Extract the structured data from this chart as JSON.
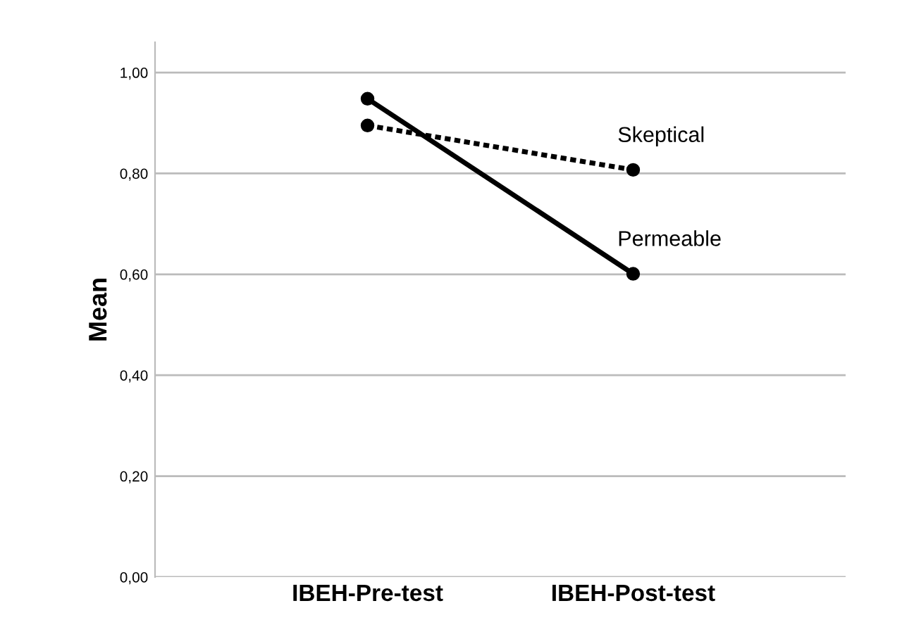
{
  "chart_data": {
    "type": "line",
    "ylabel": "Mean",
    "categories": [
      "IBEH-Pre-test",
      "IBEH-Post-test"
    ],
    "series": [
      {
        "name": "Skeptical",
        "color": "#000000",
        "line_style": "dotted",
        "values": [
          0.895,
          0.807
        ]
      },
      {
        "name": "Permeable",
        "color": "#000000",
        "line_style": "solid",
        "values": [
          0.948,
          0.601
        ]
      }
    ],
    "ylim": [
      0,
      1.06
    ],
    "yticks": [
      {
        "value": 0,
        "label": "0,00"
      },
      {
        "value": 0.2,
        "label": "0,20"
      },
      {
        "value": 0.4,
        "label": "0,40"
      },
      {
        "value": 0.6,
        "label": "0,60"
      },
      {
        "value": 0.8,
        "label": "0,80"
      },
      {
        "value": 1.0,
        "label": "1,00"
      }
    ],
    "grid": "y",
    "marker": "circle",
    "legend": false
  }
}
